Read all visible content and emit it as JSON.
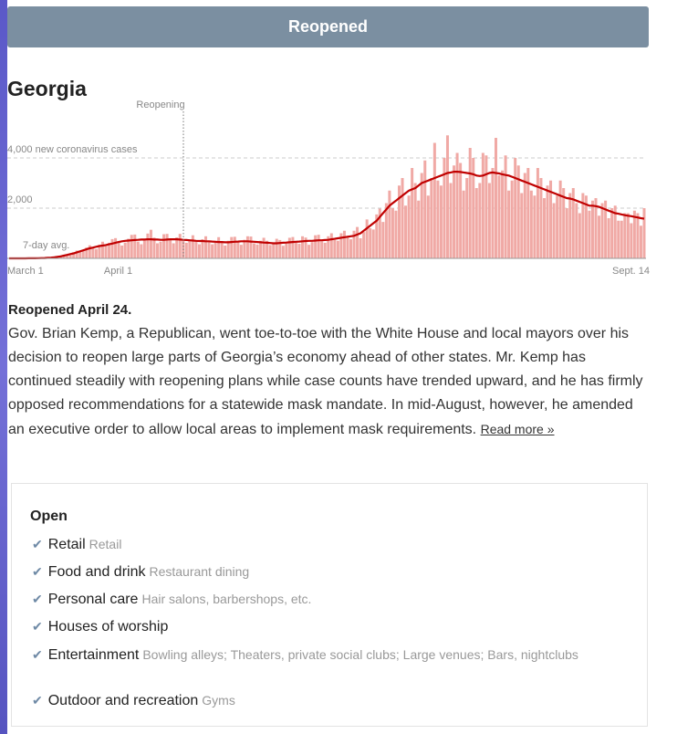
{
  "header": {
    "title": "Reopened"
  },
  "state": "Georgia",
  "chart_data": {
    "type": "bar_line",
    "annotation": "Reopening",
    "categories": [
      "March 1",
      null,
      null,
      null,
      null,
      null,
      null,
      null,
      null,
      null,
      null,
      null,
      null,
      null,
      null,
      null,
      null,
      null,
      null,
      null,
      null,
      null,
      null,
      null,
      null,
      null,
      null,
      null,
      null,
      null,
      null,
      "April 1",
      null,
      null,
      null,
      null,
      null,
      null,
      null,
      null,
      null,
      null,
      null,
      null,
      null,
      null,
      null,
      null,
      null,
      null,
      null,
      null,
      null,
      null,
      null,
      null,
      null,
      null,
      null,
      null,
      null,
      null,
      null,
      null,
      null,
      null,
      null,
      null,
      null,
      null,
      null,
      null,
      null,
      null,
      null,
      null,
      null,
      null,
      null,
      null,
      null,
      null,
      null,
      null,
      null,
      null,
      null,
      null,
      null,
      null,
      null,
      null,
      null,
      null,
      null,
      null,
      null,
      null,
      null,
      null,
      null,
      null,
      null,
      null,
      null,
      null,
      null,
      null,
      null,
      null,
      null,
      null,
      null,
      null,
      null,
      null,
      null,
      null,
      null,
      null,
      null,
      null,
      null,
      null,
      null,
      null,
      null,
      null,
      null,
      null,
      null,
      null,
      null,
      null,
      null,
      null,
      null,
      null,
      null,
      null,
      null,
      null,
      null,
      null,
      null,
      null,
      null,
      null,
      null,
      null,
      null,
      null,
      null,
      null,
      null,
      null,
      null,
      null,
      null,
      null,
      null,
      null,
      null,
      null,
      null,
      null,
      null,
      null,
      null,
      null,
      null,
      null,
      null,
      null,
      null,
      null,
      null,
      null,
      null,
      null,
      null,
      null,
      null,
      null,
      null,
      null,
      null,
      null,
      null,
      null,
      null,
      null,
      null,
      null,
      null,
      null,
      null,
      "Sept. 14"
    ],
    "series": [
      {
        "color": "#f0a9a5",
        "values": [
          0,
          0,
          0,
          0,
          0,
          1,
          2,
          4,
          5,
          8,
          13,
          14,
          18,
          36,
          54,
          45,
          72,
          143,
          133,
          136,
          240,
          312,
          266,
          288,
          432,
          520,
          409,
          368,
          539,
          663,
          504,
          616,
          767,
          806,
          618,
          510,
          630,
          781,
          936,
          949,
          666,
          563,
          713,
          988,
          1140,
          825,
          600,
          666,
          962,
          975,
          760,
          600,
          836,
          975,
          740,
          620,
          720,
          920,
          700,
          560,
          760,
          880,
          690,
          560,
          640,
          845,
          620,
          510,
          700,
          850,
          860,
          640,
          540,
          740,
          880,
          870,
          600,
          550,
          700,
          820,
          700,
          530,
          600,
          780,
          730,
          500,
          600,
          820,
          850,
          640,
          580,
          880,
          830,
          540,
          650,
          920,
          940,
          680,
          620,
          880,
          1000,
          740,
          700,
          1000,
          1100,
          860,
          760,
          1100,
          1250,
          800,
          1050,
          1550,
          1200,
          1150,
          1750,
          1980,
          1450,
          2200,
          2700,
          2000,
          1900,
          2900,
          3200,
          2100,
          2500,
          3600,
          3000,
          2300,
          3400,
          3900,
          2500,
          3200,
          4600,
          3100,
          2900,
          4000,
          4900,
          3000,
          3700,
          4200,
          3800,
          2700,
          3200,
          4400,
          4000,
          2800,
          3000,
          4200,
          4100,
          3000,
          3600,
          4800,
          3300,
          3500,
          4100,
          2700,
          3100,
          4000,
          3700,
          2600,
          3400,
          3600,
          2700,
          2500,
          3600,
          3200,
          2400,
          2900,
          3100,
          2200,
          2500,
          3100,
          2800,
          2000,
          2600,
          2800,
          2200,
          1800,
          2600,
          2500,
          1900,
          2300,
          2400,
          1700,
          2200,
          2300,
          1600,
          2000,
          2100,
          1500,
          1500,
          1800,
          1800,
          1400,
          1900,
          1800,
          1300,
          2000
        ]
      },
      {
        "name": "7-day avg.",
        "color": "#c00000",
        "values": [
          0,
          0,
          0,
          0,
          0,
          1,
          2,
          3,
          5,
          7,
          10,
          15,
          22,
          30,
          45,
          60,
          80,
          110,
          140,
          170,
          200,
          240,
          280,
          320,
          360,
          400,
          430,
          460,
          490,
          510,
          530,
          560,
          590,
          620,
          650,
          680,
          700,
          710,
          720,
          730,
          740,
          750,
          750,
          760,
          760,
          750,
          750,
          740,
          740,
          750,
          760,
          760,
          760,
          750,
          740,
          730,
          720,
          710,
          700,
          690,
          690,
          680,
          680,
          670,
          660,
          650,
          650,
          640,
          640,
          650,
          660,
          670,
          680,
          680,
          680,
          670,
          660,
          650,
          640,
          630,
          620,
          610,
          600,
          600,
          610,
          620,
          630,
          640,
          650,
          660,
          670,
          680,
          690,
          700,
          700,
          710,
          720,
          720,
          730,
          740,
          760,
          780,
          800,
          820,
          840,
          860,
          880,
          900,
          950,
          1000,
          1100,
          1200,
          1300,
          1400,
          1500,
          1650,
          1800,
          1950,
          2100,
          2200,
          2300,
          2400,
          2500,
          2600,
          2700,
          2750,
          2800,
          2900,
          3000,
          3050,
          3100,
          3150,
          3200,
          3250,
          3300,
          3350,
          3400,
          3420,
          3450,
          3450,
          3440,
          3420,
          3400,
          3380,
          3350,
          3300,
          3280,
          3300,
          3350,
          3400,
          3420,
          3400,
          3380,
          3350,
          3320,
          3300,
          3250,
          3200,
          3150,
          3100,
          3050,
          3000,
          2950,
          2900,
          2850,
          2800,
          2750,
          2700,
          2650,
          2600,
          2550,
          2500,
          2450,
          2400,
          2380,
          2350,
          2300,
          2250,
          2200,
          2150,
          2100,
          2100,
          2080,
          2050,
          2000,
          1950,
          1900,
          1850,
          1800,
          1780,
          1750,
          1720,
          1700,
          1680,
          1650,
          1630,
          1600,
          1580
        ]
      }
    ],
    "ylim": [
      0,
      5000
    ],
    "yticks": [
      {
        "value": 2000,
        "label": "2,000"
      },
      {
        "value": 4000,
        "label": "4,000 new coronavirus cases"
      }
    ],
    "grid": true
  },
  "summary": {
    "heading": "Reopened April 24.",
    "text": "Gov. Brian Kemp, a Republican, went toe-to-toe with the White House and local mayors over his decision to reopen large parts of Georgia’s economy ahead of other states. Mr. Kemp has continued steadily with reopening plans while case counts have trended upward, and he has firmly opposed recommendations for a statewide mask mandate. In mid-August, however, he amended an executive order to allow local areas to implement mask requirements.",
    "link": "Read more »"
  },
  "status": {
    "title": "Open",
    "items": [
      {
        "name": "Retail",
        "detail": "Retail"
      },
      {
        "name": "Food and drink",
        "detail": "Restaurant dining"
      },
      {
        "name": "Personal care",
        "detail": "Hair salons, barbershops, etc."
      },
      {
        "name": "Houses of worship"
      },
      {
        "name": "Entertainment",
        "detail": "Bowling alleys; Theaters, private social clubs; Large venues; Bars, nightclubs"
      },
      {
        "name": "Outdoor and recreation",
        "detail": "Gyms"
      }
    ]
  }
}
